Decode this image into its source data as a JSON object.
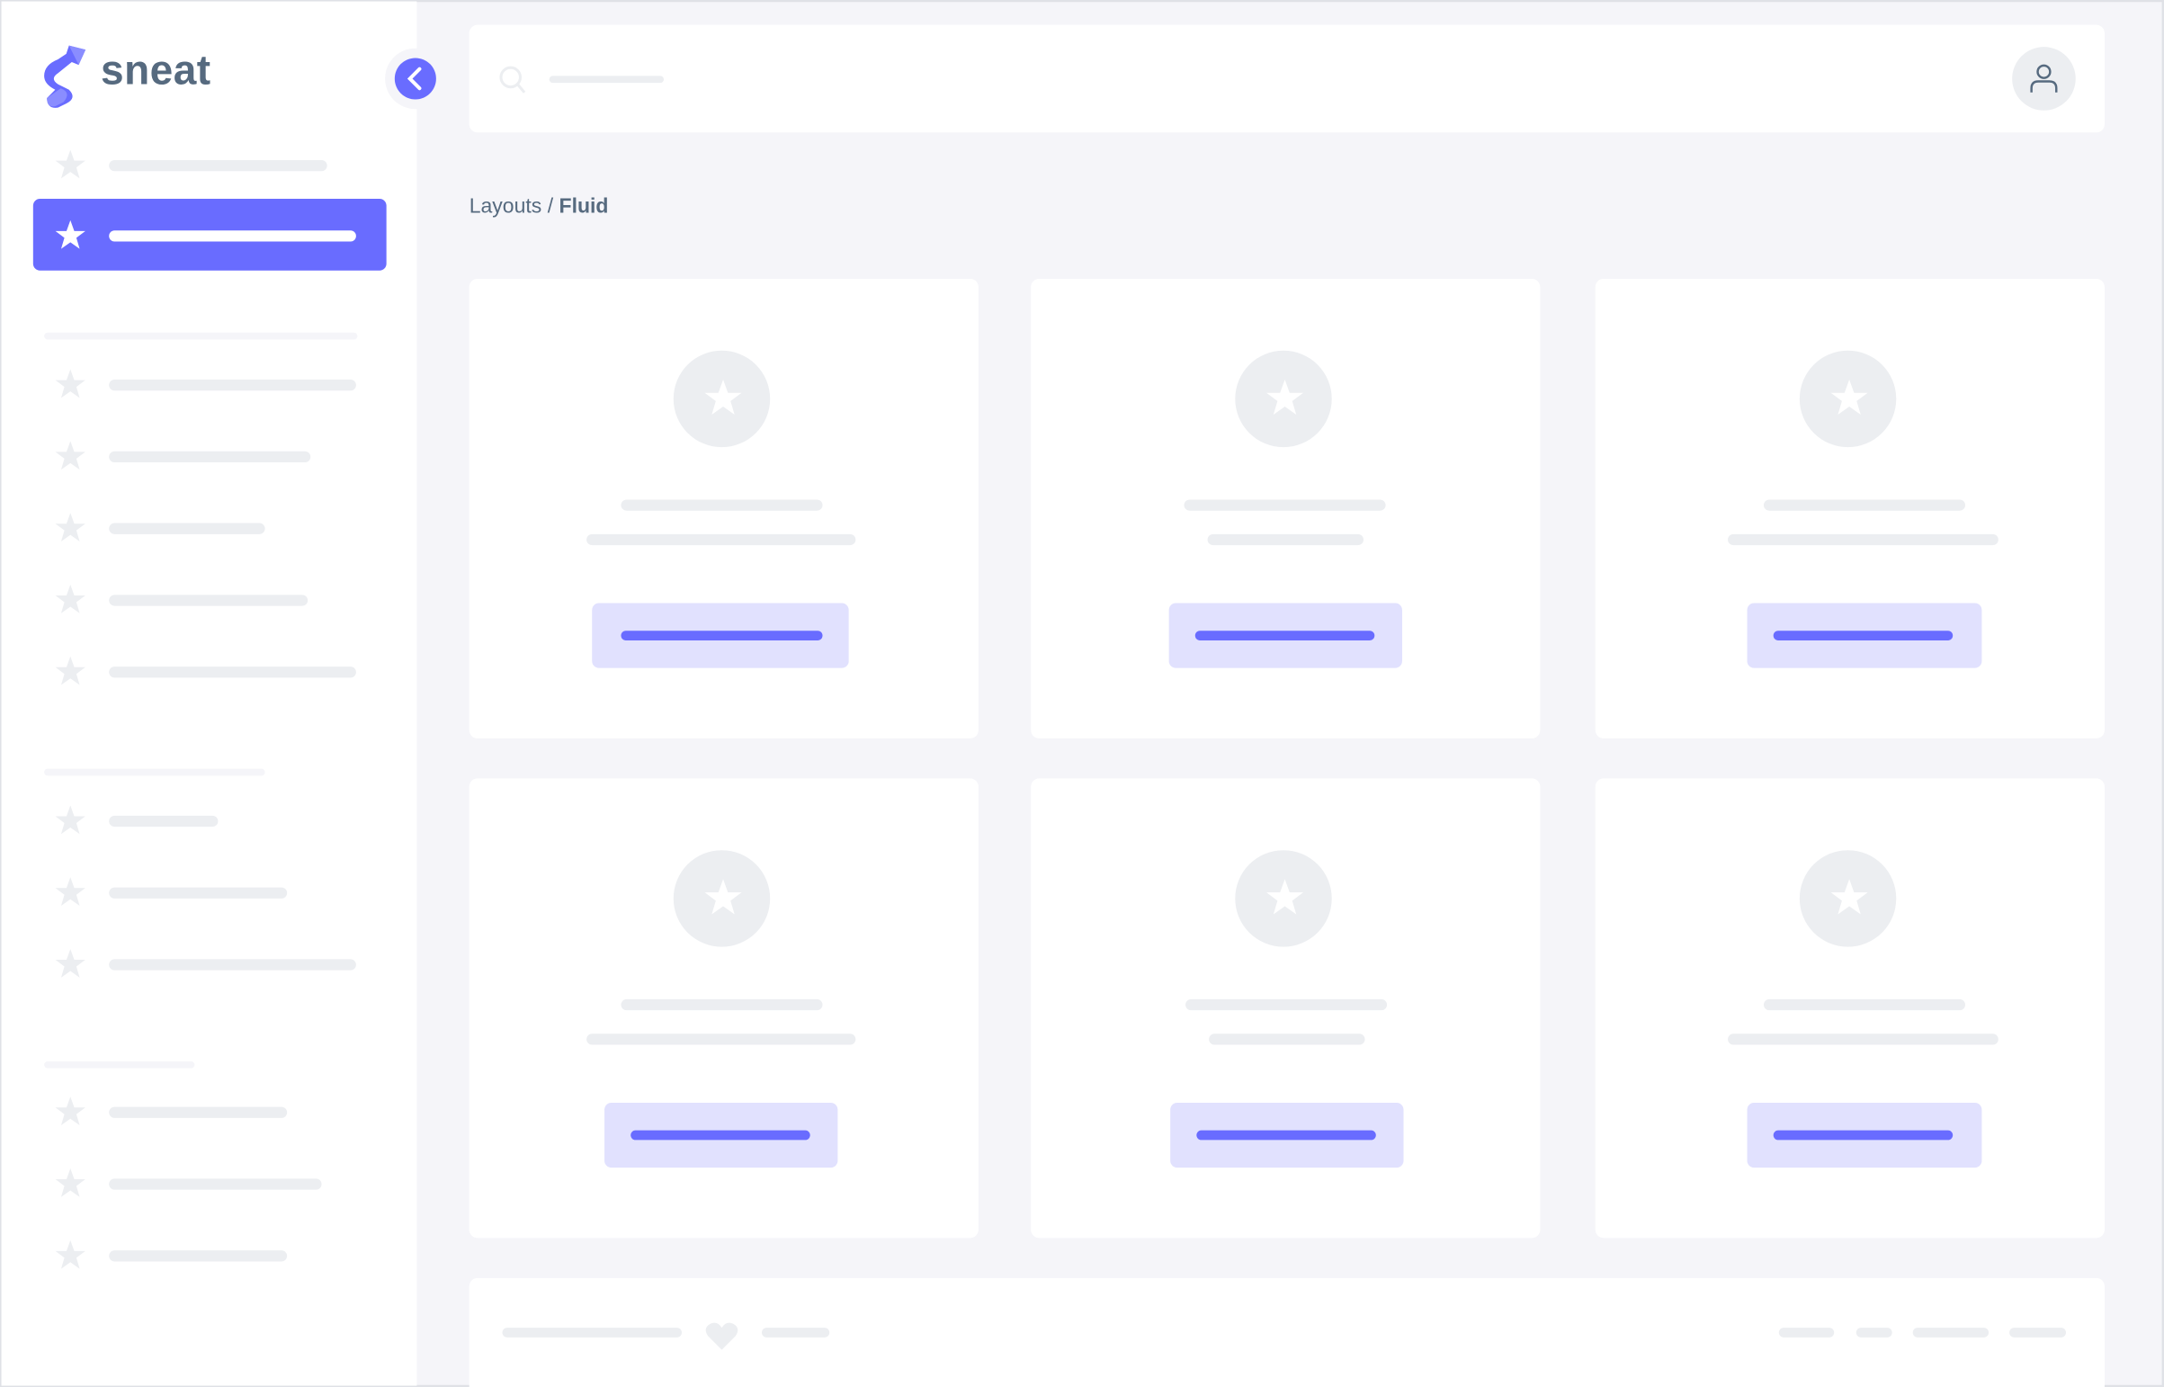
{
  "brand": {
    "name": "sneat",
    "logo_icon": "sneat-s-logo"
  },
  "breadcrumb": {
    "parent": "Layouts",
    "separator": " / ",
    "current": "Fluid"
  },
  "colors": {
    "primary": "#696cff",
    "primary_light": "#e1e1fe",
    "background": "#f5f5f9",
    "placeholder": "#eceef1",
    "text": "#566a7f"
  },
  "icons": {
    "nav": "star-icon",
    "search": "search-icon",
    "user": "user-icon",
    "collapse": "chevron-left-icon",
    "footer": "heart-icon"
  },
  "sidebar": {
    "active_index": 1,
    "item_count": 13
  },
  "cards": {
    "count": 6
  }
}
